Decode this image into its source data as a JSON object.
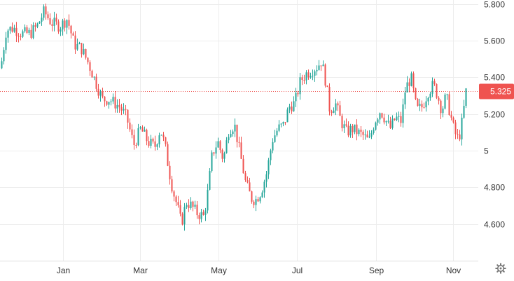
{
  "chart_data": {
    "type": "candlestick",
    "x_tick_labels": [
      "Jan",
      "Mar",
      "May",
      "Jul",
      "Sep",
      "Nov"
    ],
    "y_ticks": [
      {
        "value": 4.6,
        "label": "4.600"
      },
      {
        "value": 4.8,
        "label": "4.800"
      },
      {
        "value": 5.0,
        "label": "5"
      },
      {
        "value": 5.2,
        "label": "5.200"
      },
      {
        "value": 5.4,
        "label": "5.400"
      },
      {
        "value": 5.6,
        "label": "5.600"
      },
      {
        "value": 5.8,
        "label": "5.800"
      }
    ],
    "ylim": [
      4.4,
      5.8
    ],
    "current_price": {
      "value": 5.325,
      "label": "5.325"
    },
    "grid": true,
    "colors": {
      "up": "#26a69a",
      "down": "#ef5350",
      "grid": "#ededed",
      "price_line": "#ef5350",
      "price_tag": "#ef5350"
    },
    "path_points": [
      [
        0,
        5.45
      ],
      [
        8,
        5.66
      ],
      [
        18,
        5.67
      ],
      [
        30,
        5.64
      ],
      [
        42,
        5.64
      ],
      [
        52,
        5.68
      ],
      [
        62,
        5.76
      ],
      [
        72,
        5.7
      ],
      [
        85,
        5.68
      ],
      [
        95,
        5.72
      ],
      [
        105,
        5.58
      ],
      [
        115,
        5.56
      ],
      [
        125,
        5.48
      ],
      [
        135,
        5.38
      ],
      [
        145,
        5.28
      ],
      [
        155,
        5.28
      ],
      [
        170,
        5.24
      ],
      [
        180,
        5.18
      ],
      [
        190,
        5.03
      ],
      [
        200,
        5.12
      ],
      [
        210,
        5.05
      ],
      [
        220,
        5.02
      ],
      [
        228,
        5.12
      ],
      [
        235,
        5.02
      ],
      [
        240,
        4.9
      ],
      [
        246,
        4.78
      ],
      [
        252,
        4.7
      ],
      [
        258,
        4.6
      ],
      [
        265,
        4.72
      ],
      [
        272,
        4.7
      ],
      [
        280,
        4.66
      ],
      [
        290,
        4.64
      ],
      [
        296,
        4.78
      ],
      [
        302,
        4.98
      ],
      [
        310,
        5.05
      ],
      [
        318,
        4.95
      ],
      [
        326,
        5.12
      ],
      [
        334,
        5.14
      ],
      [
        342,
        4.98
      ],
      [
        350,
        4.82
      ],
      [
        358,
        4.74
      ],
      [
        364,
        4.73
      ],
      [
        372,
        4.78
      ],
      [
        380,
        4.88
      ],
      [
        388,
        5.06
      ],
      [
        396,
        5.12
      ],
      [
        404,
        5.14
      ],
      [
        412,
        5.24
      ],
      [
        420,
        5.26
      ],
      [
        428,
        5.38
      ],
      [
        436,
        5.42
      ],
      [
        444,
        5.44
      ],
      [
        452,
        5.46
      ],
      [
        458,
        5.49
      ],
      [
        464,
        5.38
      ],
      [
        470,
        5.22
      ],
      [
        478,
        5.26
      ],
      [
        486,
        5.16
      ],
      [
        494,
        5.1
      ],
      [
        502,
        5.12
      ],
      [
        510,
        5.1
      ],
      [
        518,
        5.08
      ],
      [
        526,
        5.05
      ],
      [
        534,
        5.16
      ],
      [
        542,
        5.22
      ],
      [
        548,
        5.18
      ],
      [
        556,
        5.12
      ],
      [
        564,
        5.18
      ],
      [
        572,
        5.16
      ],
      [
        578,
        5.34
      ],
      [
        586,
        5.4
      ],
      [
        594,
        5.22
      ],
      [
        602,
        5.24
      ],
      [
        610,
        5.32
      ],
      [
        618,
        5.36
      ],
      [
        624,
        5.3
      ],
      [
        630,
        5.22
      ],
      [
        636,
        5.3
      ],
      [
        642,
        5.2
      ],
      [
        648,
        5.1
      ],
      [
        654,
        5.06
      ],
      [
        660,
        5.18
      ],
      [
        664,
        5.32
      ],
      [
        668,
        5.34
      ]
    ]
  },
  "ui": {
    "settings_icon": "gear-icon"
  }
}
